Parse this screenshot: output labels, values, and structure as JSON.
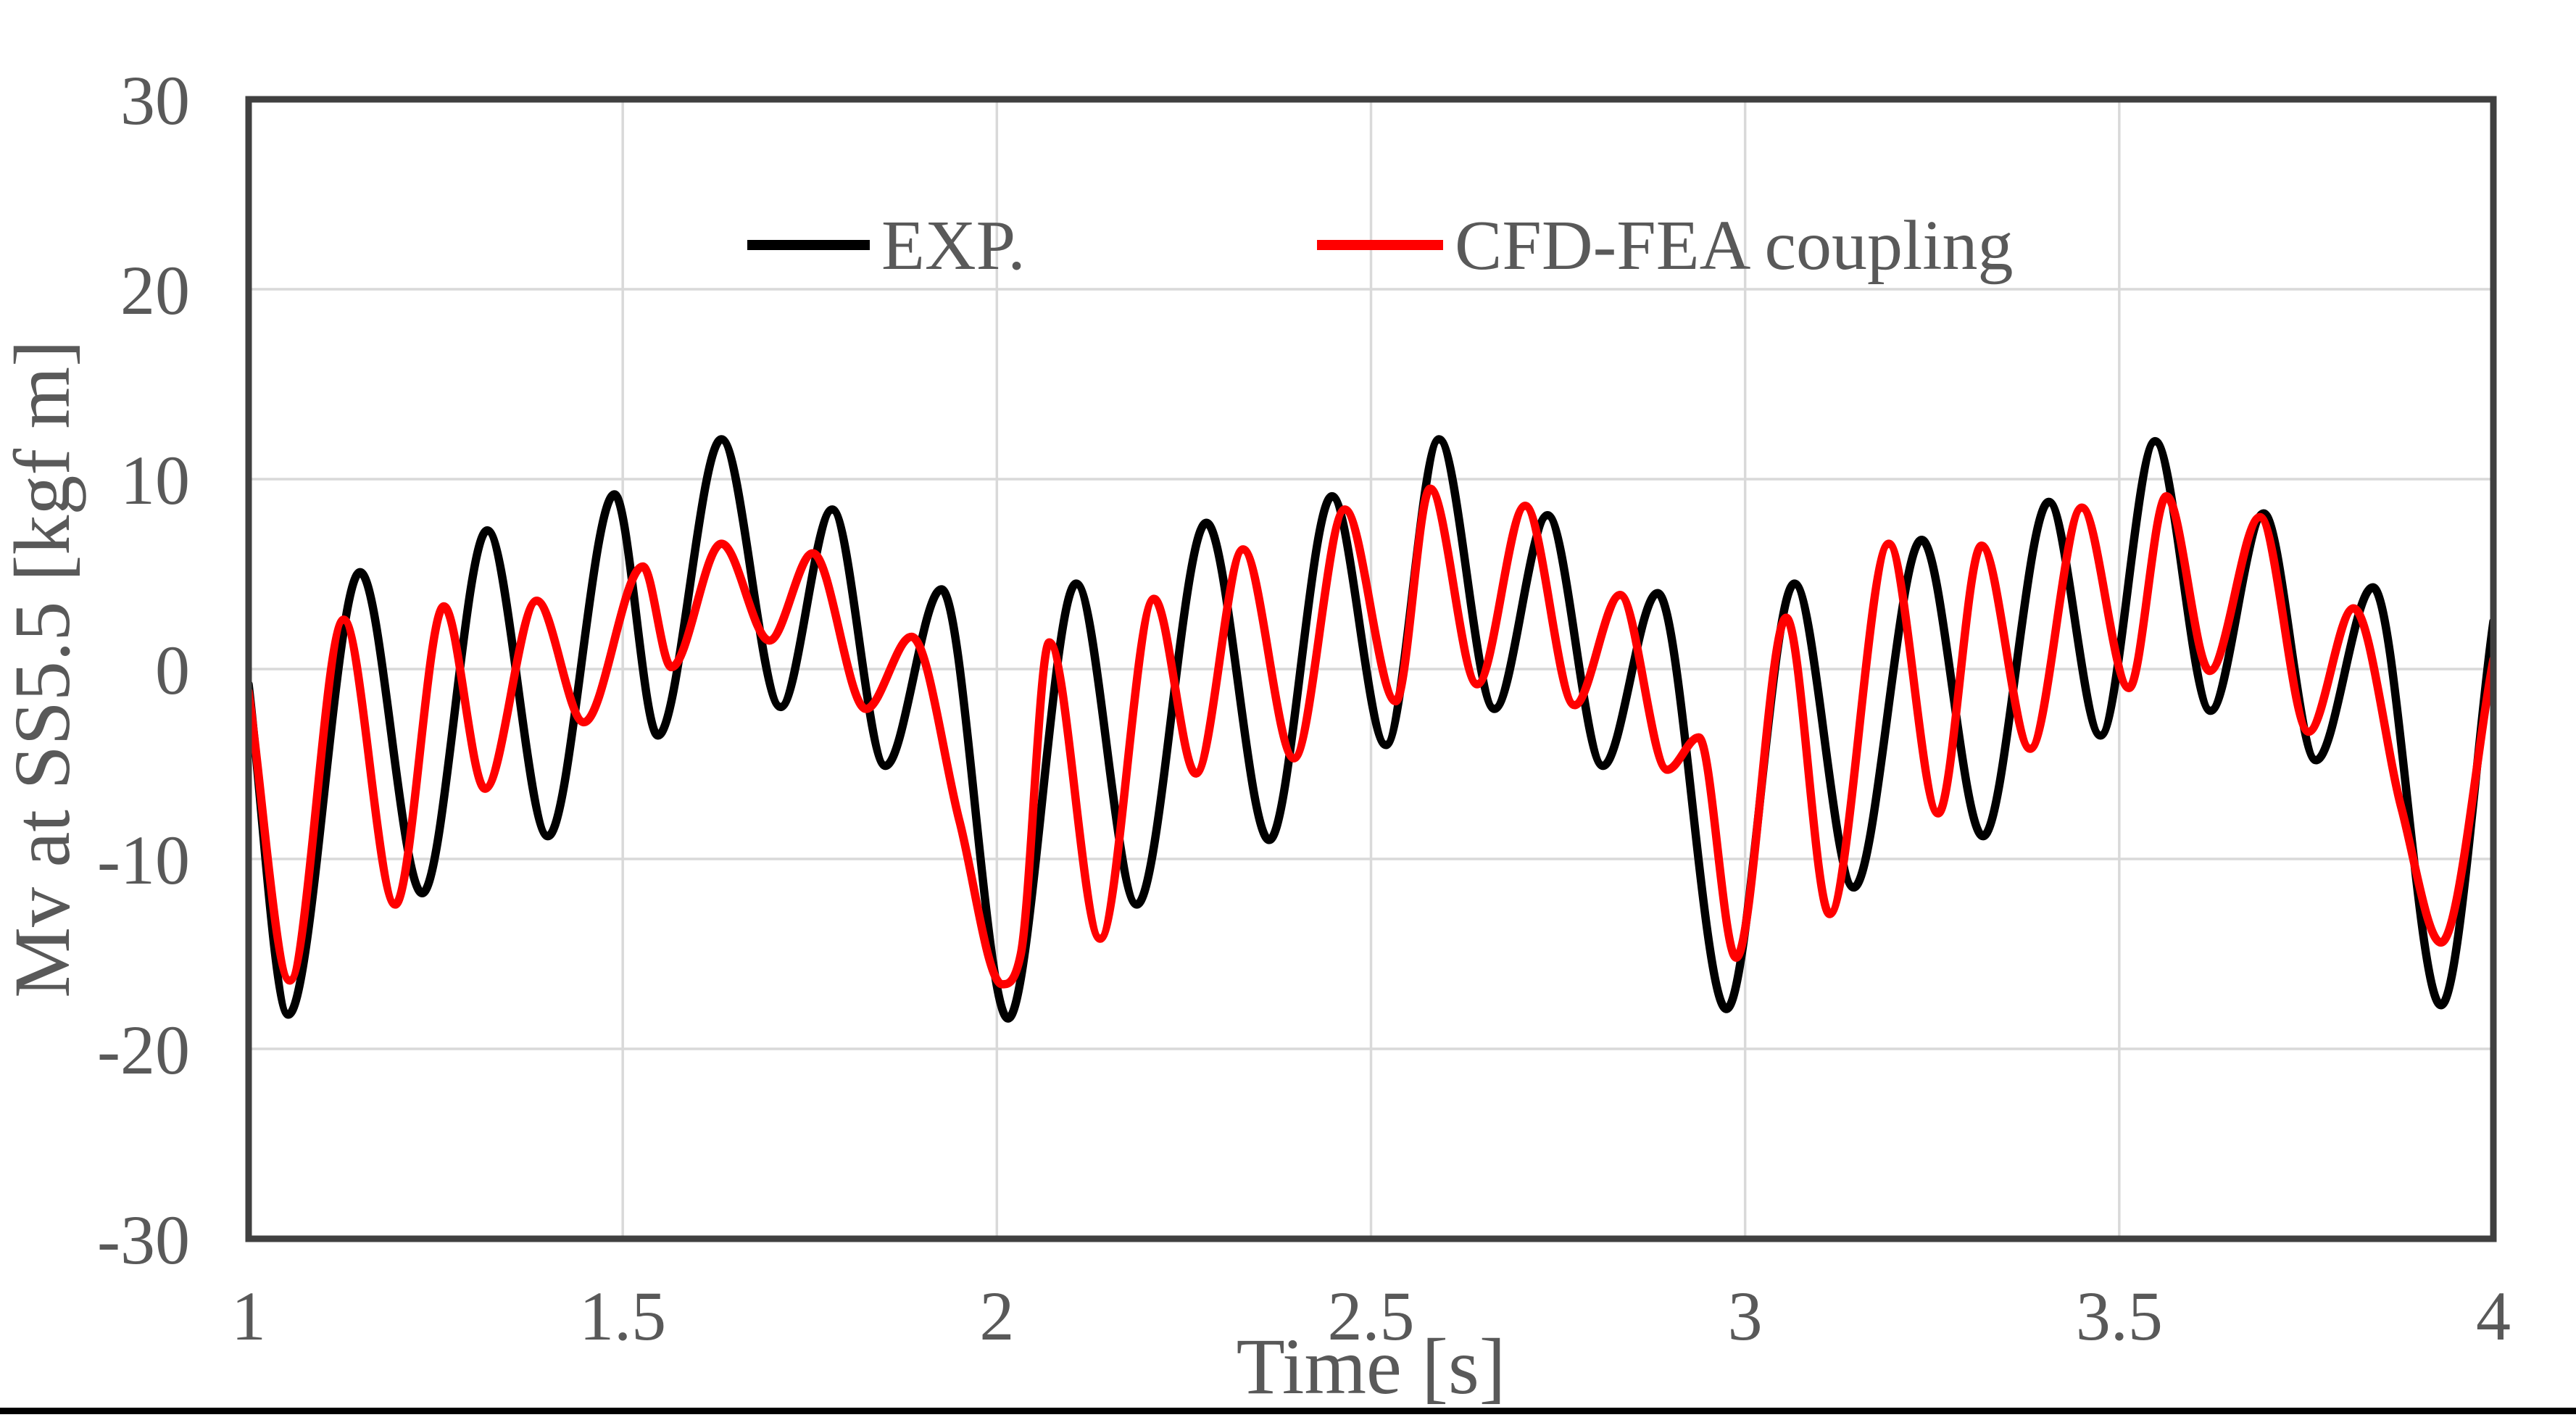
{
  "figure": {
    "background": "#ffffff",
    "text_color": "#595959",
    "grid_color": "#d9d9d9",
    "border_color": "#404040",
    "bottom_rule_color": "#000000"
  },
  "chart_data": {
    "type": "line",
    "title": "",
    "xlabel": "Time [s]",
    "ylabel": "Mv at SS5.5 [kgf m]",
    "xlim": [
      1,
      4
    ],
    "ylim": [
      -30,
      30
    ],
    "xticks": [
      1,
      1.5,
      2,
      2.5,
      3,
      3.5,
      4
    ],
    "xtick_labels": [
      "1",
      "1.5",
      "2",
      "2.5",
      "3",
      "3.5",
      "4"
    ],
    "yticks": [
      -30,
      -20,
      -10,
      0,
      10,
      20,
      30
    ],
    "ytick_labels": [
      "-30",
      "-20",
      "-10",
      "0",
      "10",
      "20",
      "30"
    ],
    "grid": true,
    "legend_position": "inside-top-center",
    "legend": [
      "EXP.",
      "CFD-FEA coupling"
    ],
    "series": [
      {
        "name": "EXP.",
        "color": "#000000",
        "points": [
          [
            1.0,
            -0.8
          ],
          [
            1.053,
            -18.2
          ],
          [
            1.149,
            5.1
          ],
          [
            1.232,
            -11.8
          ],
          [
            1.319,
            7.3
          ],
          [
            1.4,
            -8.8
          ],
          [
            1.489,
            9.2
          ],
          [
            1.547,
            -3.5
          ],
          [
            1.632,
            12.1
          ],
          [
            1.711,
            -2.0
          ],
          [
            1.78,
            8.4
          ],
          [
            1.851,
            -5.1
          ],
          [
            1.926,
            4.2
          ],
          [
            2.015,
            -18.4
          ],
          [
            2.106,
            4.5
          ],
          [
            2.187,
            -12.4
          ],
          [
            2.28,
            7.7
          ],
          [
            2.364,
            -9.0
          ],
          [
            2.448,
            9.1
          ],
          [
            2.52,
            -4.0
          ],
          [
            2.591,
            12.1
          ],
          [
            2.665,
            -2.1
          ],
          [
            2.736,
            8.1
          ],
          [
            2.81,
            -5.1
          ],
          [
            2.883,
            4.0
          ],
          [
            2.975,
            -17.9
          ],
          [
            3.066,
            4.5
          ],
          [
            3.145,
            -11.5
          ],
          [
            3.236,
            6.8
          ],
          [
            3.318,
            -8.8
          ],
          [
            3.406,
            8.8
          ],
          [
            3.475,
            -3.5
          ],
          [
            3.548,
            12.0
          ],
          [
            3.622,
            -2.2
          ],
          [
            3.693,
            8.2
          ],
          [
            3.763,
            -4.8
          ],
          [
            3.839,
            4.3
          ],
          [
            3.93,
            -17.7
          ],
          [
            4.0,
            2.5
          ]
        ]
      },
      {
        "name": "CFD-FEA coupling",
        "color": "#ff0000",
        "points": [
          [
            1.0,
            -1.2
          ],
          [
            1.055,
            -16.4
          ],
          [
            1.127,
            2.6
          ],
          [
            1.196,
            -12.4
          ],
          [
            1.261,
            3.3
          ],
          [
            1.316,
            -6.3
          ],
          [
            1.385,
            3.6
          ],
          [
            1.448,
            -2.8
          ],
          [
            1.527,
            5.4
          ],
          [
            1.565,
            0.1
          ],
          [
            1.632,
            6.6
          ],
          [
            1.696,
            1.5
          ],
          [
            1.754,
            6.1
          ],
          [
            1.825,
            -2.1
          ],
          [
            1.886,
            1.7
          ],
          [
            1.95,
            -8.0
          ],
          [
            2.007,
            -16.6
          ],
          [
            2.032,
            -15.0
          ],
          [
            2.07,
            1.4
          ],
          [
            2.138,
            -14.2
          ],
          [
            2.21,
            3.7
          ],
          [
            2.266,
            -5.5
          ],
          [
            2.329,
            6.3
          ],
          [
            2.397,
            -4.7
          ],
          [
            2.465,
            8.4
          ],
          [
            2.533,
            -1.7
          ],
          [
            2.579,
            9.5
          ],
          [
            2.642,
            -0.8
          ],
          [
            2.706,
            8.6
          ],
          [
            2.772,
            -1.9
          ],
          [
            2.833,
            3.9
          ],
          [
            2.896,
            -5.3
          ],
          [
            2.938,
            -3.6
          ],
          [
            2.988,
            -15.2
          ],
          [
            3.055,
            2.7
          ],
          [
            3.113,
            -12.9
          ],
          [
            3.192,
            6.6
          ],
          [
            3.258,
            -7.6
          ],
          [
            3.316,
            6.5
          ],
          [
            3.381,
            -4.2
          ],
          [
            3.45,
            8.5
          ],
          [
            3.513,
            -1.0
          ],
          [
            3.563,
            9.1
          ],
          [
            3.621,
            -0.1
          ],
          [
            3.688,
            8.0
          ],
          [
            3.753,
            -3.3
          ],
          [
            3.813,
            3.2
          ],
          [
            3.877,
            -7.3
          ],
          [
            3.93,
            -14.4
          ],
          [
            4.0,
            0.5
          ]
        ]
      }
    ]
  }
}
